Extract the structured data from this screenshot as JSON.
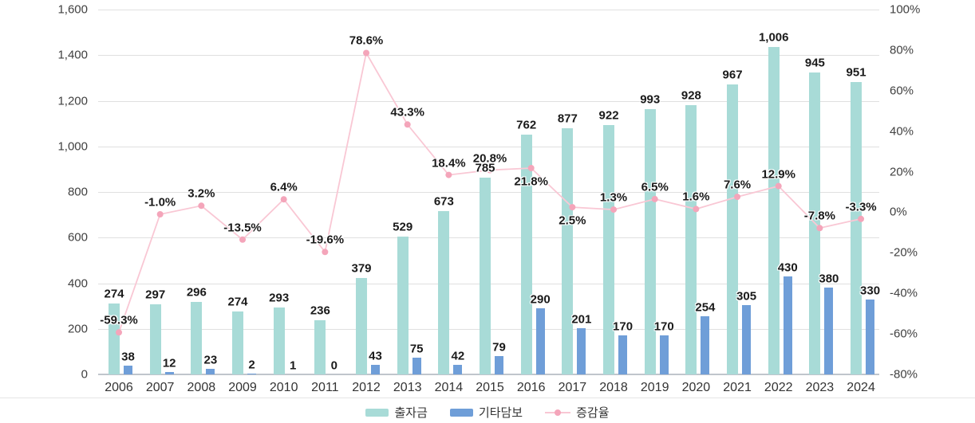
{
  "chart_data": {
    "type": "bar",
    "subtype": "grouped-bars-with-line-overlay",
    "title": "",
    "categories": [
      "2006",
      "2007",
      "2008",
      "2009",
      "2010",
      "2011",
      "2012",
      "2013",
      "2014",
      "2015",
      "2016",
      "2017",
      "2018",
      "2019",
      "2020",
      "2021",
      "2022",
      "2023",
      "2024"
    ],
    "series": [
      {
        "name": "출자금",
        "type": "bar",
        "color": "#a8dbd7",
        "values": [
          274,
          297,
          296,
          274,
          293,
          236,
          379,
          529,
          673,
          785,
          762,
          877,
          922,
          993,
          928,
          967,
          1006,
          945,
          951
        ],
        "display_labels": [
          "274",
          "297",
          "296",
          "274",
          "293",
          "236",
          "379",
          "529",
          "673",
          "785",
          "762",
          "877",
          "922",
          "993",
          "928",
          "967",
          "1,006",
          "945",
          "951"
        ]
      },
      {
        "name": "기타담보",
        "type": "bar",
        "color": "#6f9ed8",
        "values": [
          38,
          12,
          23,
          2,
          1,
          0,
          43,
          75,
          42,
          79,
          290,
          201,
          170,
          170,
          254,
          305,
          430,
          380,
          330
        ],
        "display_labels": [
          "38",
          "12",
          "23",
          "2",
          "1",
          "0",
          "43",
          "75",
          "42",
          "79",
          "290",
          "201",
          "170",
          "170",
          "254",
          "305",
          "430",
          "380",
          "330"
        ]
      },
      {
        "name": "증감율",
        "type": "line",
        "color": "#f9c7d4",
        "point_color": "#f4a5ba",
        "values": [
          -59.3,
          -1.0,
          3.2,
          -13.5,
          6.4,
          -19.6,
          78.6,
          43.3,
          18.4,
          20.8,
          21.8,
          2.5,
          1.3,
          6.5,
          1.6,
          7.6,
          12.9,
          -7.8,
          -3.3
        ],
        "display_labels": [
          "-59.3%",
          "-1.0%",
          "3.2%",
          "-13.5%",
          "6.4%",
          "-19.6%",
          "78.6%",
          "43.3%",
          "18.4%",
          "20.8%",
          "21.8%",
          "2.5%",
          "1.3%",
          "6.5%",
          "1.6%",
          "7.6%",
          "12.9%",
          "-7.8%",
          "-3.3%"
        ],
        "label_below_point": [
          false,
          false,
          false,
          false,
          false,
          false,
          false,
          false,
          false,
          false,
          true,
          true,
          false,
          false,
          false,
          false,
          false,
          false,
          false
        ]
      }
    ],
    "left_axis": {
      "min": 0,
      "max": 1600,
      "tick_step": 200,
      "tick_labels": [
        "1,600",
        "1,400",
        "1,200",
        "1,000",
        "800",
        "600",
        "400",
        "200",
        "0"
      ]
    },
    "right_axis": {
      "min": -80,
      "max": 100,
      "tick_step": 20,
      "tick_labels": [
        "100%",
        "80%",
        "60%",
        "40%",
        "20%",
        "0%",
        "-20%",
        "-40%",
        "-60%",
        "-80%"
      ]
    },
    "grid": true,
    "legend_position": "bottom"
  },
  "colors": {
    "gridline": "#e0e0e0",
    "baseline": "#c0c5cc",
    "separator": "#e5e5e5",
    "axis_text": "#404040",
    "value_text": "#1a1a1a",
    "year_text": "#333333",
    "legend_text": "#333333",
    "background": "#ffffff"
  }
}
